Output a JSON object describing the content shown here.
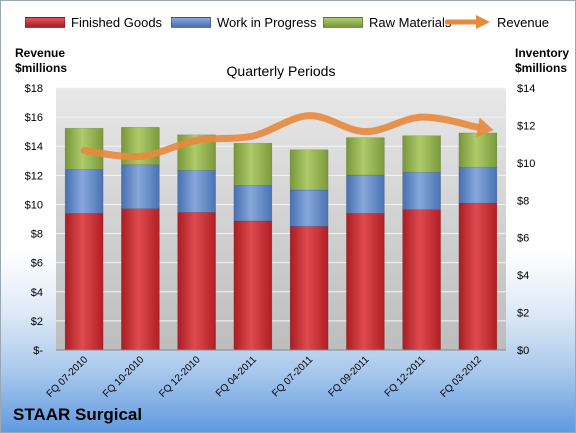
{
  "company": "STAAR Surgical",
  "legend": {
    "finished_goods": "Finished Goods",
    "work_in_progress": "Work in Progress",
    "raw_materials": "Raw Materials",
    "revenue": "Revenue"
  },
  "axes": {
    "left_title_line1": "Revenue",
    "left_title_line2": "$millions",
    "right_title_line1": "Inventory",
    "right_title_line2": "$millions"
  },
  "colors": {
    "finished_goods": "#c8262b",
    "work_in_progress": "#5b84c4",
    "raw_materials": "#8fb046",
    "revenue": "#e88a3c"
  },
  "chart_data": {
    "type": "bar",
    "stacked": true,
    "title": "Quarterly Periods",
    "categories": [
      "FQ 07-2010",
      "FQ 10-2010",
      "FQ 12-2010",
      "FQ 04-2011",
      "FQ 07-2011",
      "FQ 09-2011",
      "FQ 12-2011",
      "FQ 03-2012"
    ],
    "series": [
      {
        "name": "Finished Goods",
        "axis": "right",
        "values": [
          7.3,
          7.55,
          7.35,
          6.9,
          6.6,
          7.3,
          7.5,
          7.85
        ]
      },
      {
        "name": "Work in Progress",
        "axis": "right",
        "values": [
          2.35,
          2.35,
          2.25,
          1.9,
          1.95,
          2.05,
          2.0,
          1.9
        ]
      },
      {
        "name": "Raw Materials",
        "axis": "right",
        "values": [
          2.2,
          2.0,
          1.9,
          2.25,
          2.15,
          2.0,
          1.95,
          1.85
        ]
      },
      {
        "name": "Revenue",
        "type": "line",
        "axis": "left",
        "values": [
          13.7,
          13.3,
          14.4,
          14.7,
          16.1,
          15.0,
          16.0,
          15.3
        ]
      }
    ],
    "y_left": {
      "ticks": [
        "$-",
        "$2",
        "$4",
        "$6",
        "$8",
        "$10",
        "$12",
        "$14",
        "$16",
        "$18"
      ],
      "ylim": [
        0,
        18
      ]
    },
    "y_right": {
      "ticks": [
        "$0",
        "$2",
        "$4",
        "$6",
        "$8",
        "$10",
        "$12",
        "$14"
      ],
      "ylim": [
        0,
        14
      ]
    },
    "grid": true,
    "legend_position": "top"
  }
}
